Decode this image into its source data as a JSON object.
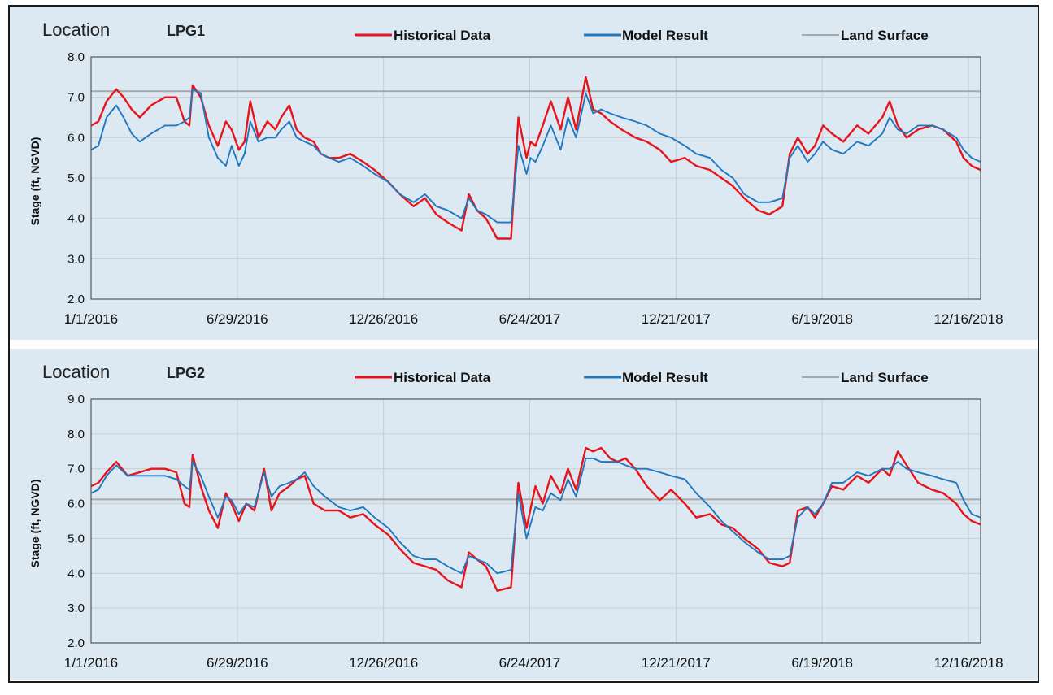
{
  "legend": {
    "historical": "Historical Data",
    "model": "Model Result",
    "land": "Land Surface"
  },
  "colors": {
    "historical": "#e8141c",
    "model": "#1f78c0",
    "land": "#a8a8a8",
    "plot_bg": "#dde9f2",
    "grid": "#c4ced6",
    "axis": "#555555"
  },
  "chart_data": [
    {
      "type": "line",
      "location_word": "Location",
      "location_id": "LPG1",
      "ylabel": "Stage (ft, NGVD)",
      "ylim": [
        2.0,
        8.0
      ],
      "yticks": [
        "2.0",
        "3.0",
        "4.0",
        "5.0",
        "6.0",
        "7.0",
        "8.0"
      ],
      "xlim": [
        "2016-01-01",
        "2018-12-31"
      ],
      "xticks": [
        "1/1/2016",
        "6/29/2016",
        "12/26/2016",
        "6/24/2017",
        "12/21/2017",
        "6/19/2018",
        "12/16/2018"
      ],
      "land_surface": 7.15,
      "series": [
        {
          "name": "Historical Data",
          "x": [
            "2016-01-01",
            "2016-01-10",
            "2016-01-20",
            "2016-02-01",
            "2016-02-10",
            "2016-02-20",
            "2016-03-01",
            "2016-03-15",
            "2016-04-01",
            "2016-04-15",
            "2016-04-25",
            "2016-05-01",
            "2016-05-05",
            "2016-05-15",
            "2016-05-25",
            "2016-06-05",
            "2016-06-15",
            "2016-06-22",
            "2016-07-01",
            "2016-07-08",
            "2016-07-15",
            "2016-07-25",
            "2016-08-05",
            "2016-08-15",
            "2016-08-22",
            "2016-09-01",
            "2016-09-10",
            "2016-09-20",
            "2016-10-01",
            "2016-10-10",
            "2016-10-20",
            "2016-11-01",
            "2016-11-15",
            "2016-12-01",
            "2016-12-15",
            "2017-01-01",
            "2017-01-15",
            "2017-02-01",
            "2017-02-15",
            "2017-03-01",
            "2017-03-15",
            "2017-04-01",
            "2017-04-10",
            "2017-04-20",
            "2017-05-01",
            "2017-05-15",
            "2017-06-01",
            "2017-06-10",
            "2017-06-20",
            "2017-06-25",
            "2017-07-01",
            "2017-07-10",
            "2017-07-20",
            "2017-08-01",
            "2017-08-10",
            "2017-08-20",
            "2017-09-01",
            "2017-09-10",
            "2017-09-20",
            "2017-10-01",
            "2017-10-15",
            "2017-11-01",
            "2017-11-15",
            "2017-12-01",
            "2017-12-15",
            "2018-01-01",
            "2018-01-15",
            "2018-02-01",
            "2018-02-15",
            "2018-03-01",
            "2018-03-15",
            "2018-04-01",
            "2018-04-15",
            "2018-05-01",
            "2018-05-10",
            "2018-05-20",
            "2018-06-01",
            "2018-06-10",
            "2018-06-20",
            "2018-07-01",
            "2018-07-15",
            "2018-08-01",
            "2018-08-15",
            "2018-09-01",
            "2018-09-10",
            "2018-09-20",
            "2018-10-01",
            "2018-10-15",
            "2018-11-01",
            "2018-11-15",
            "2018-12-01",
            "2018-12-10",
            "2018-12-20",
            "2018-12-31"
          ],
          "y": [
            6.3,
            6.4,
            6.9,
            7.2,
            7.0,
            6.7,
            6.5,
            6.8,
            7.0,
            7.0,
            6.4,
            6.3,
            7.3,
            7.0,
            6.3,
            5.8,
            6.4,
            6.2,
            5.7,
            5.9,
            6.9,
            6.0,
            6.4,
            6.2,
            6.5,
            6.8,
            6.2,
            6.0,
            5.9,
            5.6,
            5.5,
            5.5,
            5.6,
            5.4,
            5.2,
            4.9,
            4.6,
            4.3,
            4.5,
            4.1,
            3.9,
            3.7,
            4.6,
            4.2,
            4.0,
            3.5,
            3.5,
            6.5,
            5.5,
            5.9,
            5.8,
            6.3,
            6.9,
            6.2,
            7.0,
            6.2,
            7.5,
            6.7,
            6.6,
            6.4,
            6.2,
            6.0,
            5.9,
            5.7,
            5.4,
            5.5,
            5.3,
            5.2,
            5.0,
            4.8,
            4.5,
            4.2,
            4.1,
            4.3,
            5.6,
            6.0,
            5.6,
            5.8,
            6.3,
            6.1,
            5.9,
            6.3,
            6.1,
            6.5,
            6.9,
            6.3,
            6.0,
            6.2,
            6.3,
            6.2,
            5.9,
            5.5,
            5.3,
            5.2
          ]
        },
        {
          "name": "Model Result",
          "x": [
            "2016-01-01",
            "2016-01-10",
            "2016-01-20",
            "2016-02-01",
            "2016-02-10",
            "2016-02-20",
            "2016-03-01",
            "2016-03-15",
            "2016-04-01",
            "2016-04-15",
            "2016-04-25",
            "2016-05-01",
            "2016-05-05",
            "2016-05-15",
            "2016-05-25",
            "2016-06-05",
            "2016-06-15",
            "2016-06-22",
            "2016-07-01",
            "2016-07-08",
            "2016-07-15",
            "2016-07-25",
            "2016-08-05",
            "2016-08-15",
            "2016-08-22",
            "2016-09-01",
            "2016-09-10",
            "2016-09-20",
            "2016-10-01",
            "2016-10-10",
            "2016-10-20",
            "2016-11-01",
            "2016-11-15",
            "2016-12-01",
            "2016-12-15",
            "2017-01-01",
            "2017-01-15",
            "2017-02-01",
            "2017-02-15",
            "2017-03-01",
            "2017-03-15",
            "2017-04-01",
            "2017-04-10",
            "2017-04-20",
            "2017-05-01",
            "2017-05-15",
            "2017-06-01",
            "2017-06-10",
            "2017-06-20",
            "2017-06-25",
            "2017-07-01",
            "2017-07-10",
            "2017-07-20",
            "2017-08-01",
            "2017-08-10",
            "2017-08-20",
            "2017-09-01",
            "2017-09-10",
            "2017-09-20",
            "2017-10-01",
            "2017-10-15",
            "2017-11-01",
            "2017-11-15",
            "2017-12-01",
            "2017-12-15",
            "2018-01-01",
            "2018-01-15",
            "2018-02-01",
            "2018-02-15",
            "2018-03-01",
            "2018-03-15",
            "2018-04-01",
            "2018-04-15",
            "2018-05-01",
            "2018-05-10",
            "2018-05-20",
            "2018-06-01",
            "2018-06-10",
            "2018-06-20",
            "2018-07-01",
            "2018-07-15",
            "2018-08-01",
            "2018-08-15",
            "2018-09-01",
            "2018-09-10",
            "2018-09-20",
            "2018-10-01",
            "2018-10-15",
            "2018-11-01",
            "2018-11-15",
            "2018-12-01",
            "2018-12-10",
            "2018-12-20",
            "2018-12-31"
          ],
          "y": [
            5.7,
            5.8,
            6.5,
            6.8,
            6.5,
            6.1,
            5.9,
            6.1,
            6.3,
            6.3,
            6.4,
            6.5,
            7.2,
            7.1,
            6.0,
            5.5,
            5.3,
            5.8,
            5.3,
            5.6,
            6.4,
            5.9,
            6.0,
            6.0,
            6.2,
            6.4,
            6.0,
            5.9,
            5.8,
            5.6,
            5.5,
            5.4,
            5.5,
            5.3,
            5.1,
            4.9,
            4.6,
            4.4,
            4.6,
            4.3,
            4.2,
            4.0,
            4.5,
            4.2,
            4.1,
            3.9,
            3.9,
            5.8,
            5.1,
            5.5,
            5.4,
            5.8,
            6.3,
            5.7,
            6.5,
            6.0,
            7.1,
            6.6,
            6.7,
            6.6,
            6.5,
            6.4,
            6.3,
            6.1,
            6.0,
            5.8,
            5.6,
            5.5,
            5.2,
            5.0,
            4.6,
            4.4,
            4.4,
            4.5,
            5.5,
            5.8,
            5.4,
            5.6,
            5.9,
            5.7,
            5.6,
            5.9,
            5.8,
            6.1,
            6.5,
            6.2,
            6.1,
            6.3,
            6.3,
            6.2,
            6.0,
            5.7,
            5.5,
            5.4
          ]
        }
      ]
    },
    {
      "type": "line",
      "location_word": "Location",
      "location_id": "LPG2",
      "ylabel": "Stage (ft, NGVD)",
      "ylim": [
        2.0,
        9.0
      ],
      "yticks": [
        "2.0",
        "3.0",
        "4.0",
        "5.0",
        "6.0",
        "7.0",
        "8.0",
        "9.0"
      ],
      "xlim": [
        "2016-01-01",
        "2018-12-31"
      ],
      "xticks": [
        "1/1/2016",
        "6/29/2016",
        "12/26/2016",
        "6/24/2017",
        "12/21/2017",
        "6/19/2018",
        "12/16/2018"
      ],
      "land_surface": 6.12,
      "series": [
        {
          "name": "Historical Data",
          "x": [
            "2016-01-01",
            "2016-01-10",
            "2016-01-20",
            "2016-02-01",
            "2016-02-15",
            "2016-03-01",
            "2016-03-15",
            "2016-04-01",
            "2016-04-15",
            "2016-04-25",
            "2016-05-01",
            "2016-05-05",
            "2016-05-15",
            "2016-05-25",
            "2016-06-05",
            "2016-06-15",
            "2016-06-22",
            "2016-07-01",
            "2016-07-10",
            "2016-07-20",
            "2016-08-01",
            "2016-08-10",
            "2016-08-20",
            "2016-09-01",
            "2016-09-10",
            "2016-09-20",
            "2016-10-01",
            "2016-10-15",
            "2016-11-01",
            "2016-11-15",
            "2016-12-01",
            "2016-12-15",
            "2017-01-01",
            "2017-01-15",
            "2017-02-01",
            "2017-02-15",
            "2017-03-01",
            "2017-03-15",
            "2017-04-01",
            "2017-04-10",
            "2017-04-20",
            "2017-05-01",
            "2017-05-15",
            "2017-06-01",
            "2017-06-10",
            "2017-06-20",
            "2017-07-01",
            "2017-07-10",
            "2017-07-20",
            "2017-08-01",
            "2017-08-10",
            "2017-08-20",
            "2017-09-01",
            "2017-09-10",
            "2017-09-20",
            "2017-10-01",
            "2017-10-10",
            "2017-10-20",
            "2017-11-01",
            "2017-11-15",
            "2017-12-01",
            "2017-12-15",
            "2018-01-01",
            "2018-01-15",
            "2018-02-01",
            "2018-02-15",
            "2018-03-01",
            "2018-03-15",
            "2018-04-01",
            "2018-04-15",
            "2018-05-01",
            "2018-05-10",
            "2018-05-20",
            "2018-06-01",
            "2018-06-10",
            "2018-06-20",
            "2018-07-01",
            "2018-07-15",
            "2018-08-01",
            "2018-08-15",
            "2018-09-01",
            "2018-09-10",
            "2018-09-20",
            "2018-10-01",
            "2018-10-15",
            "2018-11-01",
            "2018-11-15",
            "2018-12-01",
            "2018-12-10",
            "2018-12-20",
            "2018-12-31"
          ],
          "y": [
            6.5,
            6.6,
            6.9,
            7.2,
            6.8,
            6.9,
            7.0,
            7.0,
            6.9,
            6.0,
            5.9,
            7.4,
            6.5,
            5.8,
            5.3,
            6.3,
            6.0,
            5.5,
            6.0,
            5.8,
            7.0,
            5.8,
            6.3,
            6.5,
            6.7,
            6.8,
            6.0,
            5.8,
            5.8,
            5.6,
            5.7,
            5.4,
            5.1,
            4.7,
            4.3,
            4.2,
            4.1,
            3.8,
            3.6,
            4.6,
            4.4,
            4.2,
            3.5,
            3.6,
            6.6,
            5.3,
            6.5,
            6.0,
            6.8,
            6.3,
            7.0,
            6.4,
            7.6,
            7.5,
            7.6,
            7.3,
            7.2,
            7.3,
            7.0,
            6.5,
            6.1,
            6.4,
            6.0,
            5.6,
            5.7,
            5.4,
            5.3,
            5.0,
            4.7,
            4.3,
            4.2,
            4.3,
            5.8,
            5.9,
            5.6,
            6.0,
            6.5,
            6.4,
            6.8,
            6.6,
            7.0,
            6.8,
            7.5,
            7.1,
            6.6,
            6.4,
            6.3,
            6.0,
            5.7,
            5.5,
            5.4
          ]
        },
        {
          "name": "Model Result",
          "x": [
            "2016-01-01",
            "2016-01-10",
            "2016-01-20",
            "2016-02-01",
            "2016-02-15",
            "2016-03-01",
            "2016-03-15",
            "2016-04-01",
            "2016-04-15",
            "2016-04-25",
            "2016-05-01",
            "2016-05-05",
            "2016-05-15",
            "2016-05-25",
            "2016-06-05",
            "2016-06-15",
            "2016-06-22",
            "2016-07-01",
            "2016-07-10",
            "2016-07-20",
            "2016-08-01",
            "2016-08-10",
            "2016-08-20",
            "2016-09-01",
            "2016-09-10",
            "2016-09-20",
            "2016-10-01",
            "2016-10-15",
            "2016-11-01",
            "2016-11-15",
            "2016-12-01",
            "2016-12-15",
            "2017-01-01",
            "2017-01-15",
            "2017-02-01",
            "2017-02-15",
            "2017-03-01",
            "2017-03-15",
            "2017-04-01",
            "2017-04-10",
            "2017-04-20",
            "2017-05-01",
            "2017-05-15",
            "2017-06-01",
            "2017-06-10",
            "2017-06-20",
            "2017-07-01",
            "2017-07-10",
            "2017-07-20",
            "2017-08-01",
            "2017-08-10",
            "2017-08-20",
            "2017-09-01",
            "2017-09-10",
            "2017-09-20",
            "2017-10-01",
            "2017-10-10",
            "2017-10-20",
            "2017-11-01",
            "2017-11-15",
            "2017-12-01",
            "2017-12-15",
            "2018-01-01",
            "2018-01-15",
            "2018-02-01",
            "2018-02-15",
            "2018-03-01",
            "2018-03-15",
            "2018-04-01",
            "2018-04-15",
            "2018-05-01",
            "2018-05-10",
            "2018-05-20",
            "2018-06-01",
            "2018-06-10",
            "2018-06-20",
            "2018-07-01",
            "2018-07-15",
            "2018-08-01",
            "2018-08-15",
            "2018-09-01",
            "2018-09-10",
            "2018-09-20",
            "2018-10-01",
            "2018-10-15",
            "2018-11-01",
            "2018-11-15",
            "2018-12-01",
            "2018-12-10",
            "2018-12-20",
            "2018-12-31"
          ],
          "y": [
            6.3,
            6.4,
            6.8,
            7.1,
            6.8,
            6.8,
            6.8,
            6.8,
            6.7,
            6.5,
            6.4,
            7.2,
            6.8,
            6.2,
            5.6,
            6.2,
            6.1,
            5.7,
            6.0,
            5.9,
            6.9,
            6.2,
            6.5,
            6.6,
            6.7,
            6.9,
            6.5,
            6.2,
            5.9,
            5.8,
            5.9,
            5.6,
            5.3,
            4.9,
            4.5,
            4.4,
            4.4,
            4.2,
            4.0,
            4.5,
            4.4,
            4.3,
            4.0,
            4.1,
            6.3,
            5.0,
            5.9,
            5.8,
            6.3,
            6.1,
            6.7,
            6.2,
            7.3,
            7.3,
            7.2,
            7.2,
            7.2,
            7.1,
            7.0,
            7.0,
            6.9,
            6.8,
            6.7,
            6.3,
            5.9,
            5.5,
            5.2,
            4.9,
            4.6,
            4.4,
            4.4,
            4.5,
            5.6,
            5.9,
            5.7,
            6.0,
            6.6,
            6.6,
            6.9,
            6.8,
            7.0,
            7.0,
            7.2,
            7.0,
            6.9,
            6.8,
            6.7,
            6.6,
            6.1,
            5.7,
            5.6
          ]
        }
      ]
    }
  ]
}
